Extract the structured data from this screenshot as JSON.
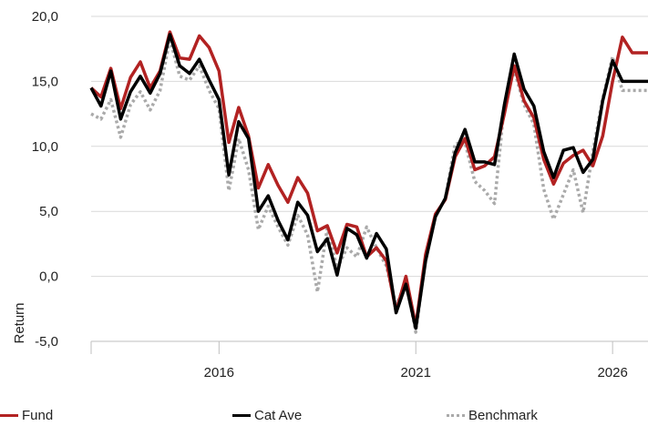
{
  "chart_data": {
    "type": "line",
    "ylabel": "Return",
    "xlabel": "",
    "ylim": [
      -5,
      20
    ],
    "yticks": [
      -5,
      0,
      5,
      10,
      15,
      20
    ],
    "ytick_labels": [
      "-5,0",
      "0,0",
      "5,0",
      "10,0",
      "15,0",
      "20,0"
    ],
    "xlim": [
      2012.75,
      2026.9
    ],
    "xticks": [
      2016,
      2021,
      2026
    ],
    "xtick_labels": [
      "2016",
      "2021",
      "2026"
    ],
    "grid": "horizontal",
    "legend_position": "bottom",
    "x": [
      2012.75,
      2013.0,
      2013.25,
      2013.5,
      2013.75,
      2014.0,
      2014.25,
      2014.5,
      2014.75,
      2015.0,
      2015.25,
      2015.5,
      2015.75,
      2016.0,
      2016.25,
      2016.5,
      2016.75,
      2017.0,
      2017.25,
      2017.5,
      2017.75,
      2018.0,
      2018.25,
      2018.5,
      2018.75,
      2019.0,
      2019.25,
      2019.5,
      2019.75,
      2020.0,
      2020.25,
      2020.5,
      2020.75,
      2021.0,
      2021.25,
      2021.5,
      2021.75,
      2022.0,
      2022.25,
      2022.5,
      2022.75,
      2023.0,
      2023.25,
      2023.5,
      2023.75,
      2024.0,
      2024.25,
      2024.5,
      2024.75,
      2025.0,
      2025.25,
      2025.5,
      2025.75,
      2026.0,
      2026.25,
      2026.5,
      2026.75,
      2026.9
    ],
    "series": [
      {
        "name": "Fund",
        "color": "#b22222",
        "style": "solid",
        "values": [
          14.5,
          13.8,
          16.0,
          12.9,
          15.3,
          16.5,
          14.5,
          15.8,
          18.8,
          16.8,
          16.7,
          18.5,
          17.6,
          15.8,
          10.3,
          13.0,
          10.8,
          6.8,
          8.6,
          7.0,
          5.7,
          7.6,
          6.4,
          3.5,
          3.9,
          1.8,
          4.0,
          3.8,
          1.5,
          2.2,
          1.2,
          -2.7,
          0.0,
          -3.8,
          1.7,
          4.8,
          5.9,
          9.2,
          10.6,
          8.2,
          8.5,
          9.2,
          12.5,
          16.2,
          13.5,
          12.2,
          9.0,
          7.1,
          8.7,
          9.3,
          9.7,
          8.5,
          10.8,
          15.0,
          18.4,
          17.2,
          17.2,
          17.2
        ]
      },
      {
        "name": "Cat Ave",
        "color": "#000000",
        "style": "solid",
        "values": [
          14.5,
          13.1,
          15.8,
          12.1,
          14.2,
          15.4,
          14.1,
          15.6,
          18.6,
          16.2,
          15.6,
          16.7,
          15.1,
          13.6,
          7.8,
          11.9,
          10.6,
          5.0,
          6.2,
          4.3,
          2.8,
          5.7,
          4.7,
          1.9,
          2.9,
          0.1,
          3.7,
          3.2,
          1.4,
          3.3,
          2.1,
          -2.8,
          -0.6,
          -4.0,
          1.2,
          4.6,
          6.0,
          9.5,
          11.3,
          8.8,
          8.8,
          8.6,
          13.2,
          17.1,
          14.4,
          13.1,
          9.6,
          7.6,
          9.7,
          9.9,
          8.0,
          9.0,
          13.5,
          16.6,
          15.0,
          15.0,
          15.0,
          15.0
        ]
      },
      {
        "name": "Benchmark",
        "color": "#aaaaaa",
        "style": "dotted",
        "values": [
          12.5,
          12.1,
          13.6,
          10.7,
          13.2,
          14.2,
          12.8,
          14.3,
          18.3,
          15.4,
          15.1,
          16.2,
          14.3,
          12.9,
          6.6,
          10.6,
          8.2,
          3.6,
          5.4,
          3.8,
          2.4,
          4.7,
          3.2,
          -1.2,
          3.7,
          0.6,
          2.2,
          1.5,
          3.8,
          2.2,
          0.8,
          -2.3,
          -0.4,
          -4.3,
          1.4,
          4.6,
          6.0,
          10.2,
          10.3,
          7.3,
          6.6,
          5.6,
          13.2,
          15.9,
          13.2,
          11.7,
          6.7,
          4.4,
          6.3,
          8.2,
          4.9,
          9.6,
          13.7,
          16.9,
          14.3,
          14.3,
          14.3,
          14.3
        ]
      }
    ]
  }
}
